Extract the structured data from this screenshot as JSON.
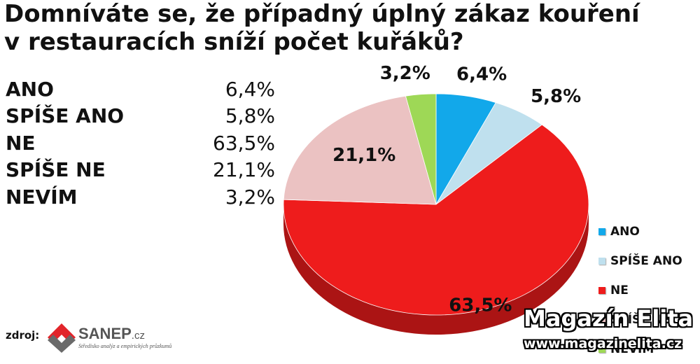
{
  "chart_data": {
    "type": "pie",
    "title": "Domníváte se, že případný úplný zákaz kouření v restauracích sníží počet kuřáků?",
    "title_lines": [
      "Domníváte se, že případný úplný zákaz kouření",
      "v restauracích sníží počet kuřáků?"
    ],
    "unit": "%",
    "categories": [
      "ANO",
      "SPÍŠE ANO",
      "NE",
      "SPÍŠE NE",
      "NEVÍM"
    ],
    "values": [
      6.4,
      5.8,
      63.5,
      21.1,
      3.2
    ],
    "value_labels": [
      "6,4%",
      "5,8%",
      "63,5%",
      "21,1%",
      "3,2%"
    ],
    "colors": [
      "#12a8ea",
      "#bfe0ee",
      "#ee1c1c",
      "#ebc2c2",
      "#9ed856"
    ],
    "start_angle_deg": 0,
    "direction": "clockwise",
    "style": "3d",
    "legend_position": "right",
    "legend": [
      "ANO",
      "SPÍŠE ANO",
      "NE",
      "SPÍŠE NE",
      "NEVÍM"
    ]
  },
  "table": {
    "rows": [
      {
        "label": "ANO",
        "value": "6,4%"
      },
      {
        "label": "SPÍŠE ANO",
        "value": "5,8%"
      },
      {
        "label": "NE",
        "value": "63,5%"
      },
      {
        "label": "SPÍŠE NE",
        "value": "21,1%"
      },
      {
        "label": "NEVÍM",
        "value": "3,2%"
      }
    ]
  },
  "source": {
    "label": "zdroj:",
    "logo_name": "SANEP",
    "logo_tld": ".cz",
    "logo_subtitle": "Středisko analýz a empirických průzkumů"
  },
  "watermark": {
    "title": "Magazín Elita",
    "url": "www.magazinelita.cz"
  }
}
